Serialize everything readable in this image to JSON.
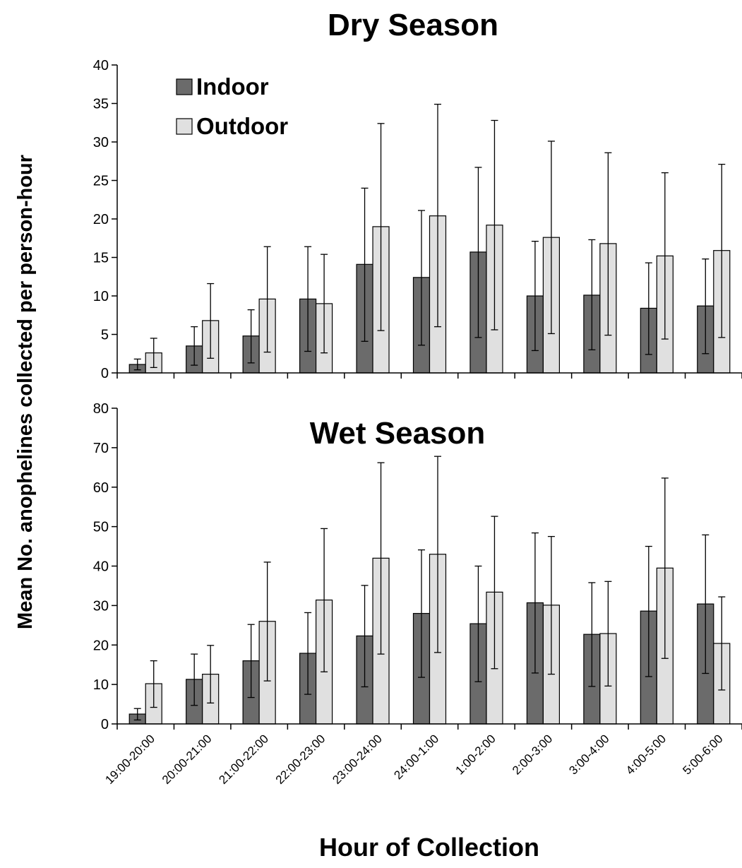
{
  "figure": {
    "ylabel": "Mean No. anophelines collected per person-hour",
    "xlabel": "Hour of Collection"
  },
  "chart_data": [
    {
      "type": "bar",
      "title": "Dry Season",
      "categories": [
        "19:00-20:00",
        "20:00-21:00",
        "21:00-22:00",
        "22:00-23:00",
        "23:00-24:00",
        "24:00-1:00",
        "1:00-2:00",
        "2:00-3:00",
        "3:00-4:00",
        "4:00-5:00",
        "5:00-6:00"
      ],
      "series": [
        {
          "name": "Indoor",
          "color": "#6b6b6b",
          "values": [
            1.1,
            3.5,
            4.8,
            9.6,
            14.1,
            12.4,
            15.7,
            10.0,
            10.1,
            8.4,
            8.7
          ],
          "error_low": [
            0.4,
            1.0,
            1.3,
            2.8,
            4.1,
            3.6,
            4.6,
            2.9,
            3.0,
            2.4,
            2.5
          ],
          "error_high": [
            1.8,
            6.0,
            8.2,
            16.4,
            24.0,
            21.1,
            26.7,
            17.1,
            17.3,
            14.3,
            14.8
          ]
        },
        {
          "name": "Outdoor",
          "color": "#e0e0e0",
          "values": [
            2.6,
            6.8,
            9.6,
            9.0,
            19.0,
            20.4,
            19.2,
            17.6,
            16.8,
            15.2,
            15.9
          ],
          "error_low": [
            0.7,
            1.9,
            2.7,
            2.6,
            5.5,
            6.0,
            5.6,
            5.1,
            4.9,
            4.4,
            4.6
          ],
          "error_high": [
            4.5,
            11.6,
            16.4,
            15.4,
            32.4,
            34.9,
            32.8,
            30.1,
            28.6,
            26.0,
            27.1
          ]
        }
      ],
      "ylim": [
        0,
        40
      ],
      "yticks": [
        0,
        5,
        10,
        15,
        20,
        25,
        30,
        35,
        40
      ],
      "legend": "top-left",
      "grid": false
    },
    {
      "type": "bar",
      "title": "Wet Season",
      "categories": [
        "19:00-20:00",
        "20:00-21:00",
        "21:00-22:00",
        "22:00-23:00",
        "23:00-24:00",
        "24:00-1:00",
        "1:00-2:00",
        "2:00-3:00",
        "3:00-4:00",
        "4:00-5:00",
        "5:00-6:00"
      ],
      "series": [
        {
          "name": "Indoor",
          "color": "#6b6b6b",
          "values": [
            2.5,
            11.3,
            16.0,
            17.9,
            22.3,
            28.0,
            25.4,
            30.7,
            22.7,
            28.6,
            30.4
          ],
          "error_low": [
            1.0,
            4.7,
            6.7,
            7.5,
            9.4,
            11.8,
            10.7,
            12.9,
            9.5,
            12.0,
            12.8
          ],
          "error_high": [
            3.9,
            17.7,
            25.2,
            28.2,
            35.1,
            44.1,
            40.0,
            48.4,
            35.8,
            45.0,
            47.9
          ]
        },
        {
          "name": "Outdoor",
          "color": "#e0e0e0",
          "values": [
            10.2,
            12.6,
            26.0,
            31.4,
            42.0,
            43.0,
            33.4,
            30.1,
            22.9,
            39.5,
            20.4
          ],
          "error_low": [
            4.2,
            5.3,
            10.9,
            13.2,
            17.7,
            18.1,
            14.0,
            12.6,
            9.6,
            16.6,
            8.6
          ],
          "error_high": [
            16.0,
            19.9,
            41.0,
            49.5,
            66.2,
            67.8,
            52.6,
            47.5,
            36.1,
            62.3,
            32.2
          ]
        }
      ],
      "ylim": [
        0,
        80
      ],
      "yticks": [
        0,
        10,
        20,
        30,
        40,
        50,
        60,
        70,
        80
      ],
      "legend": "",
      "grid": false
    }
  ]
}
